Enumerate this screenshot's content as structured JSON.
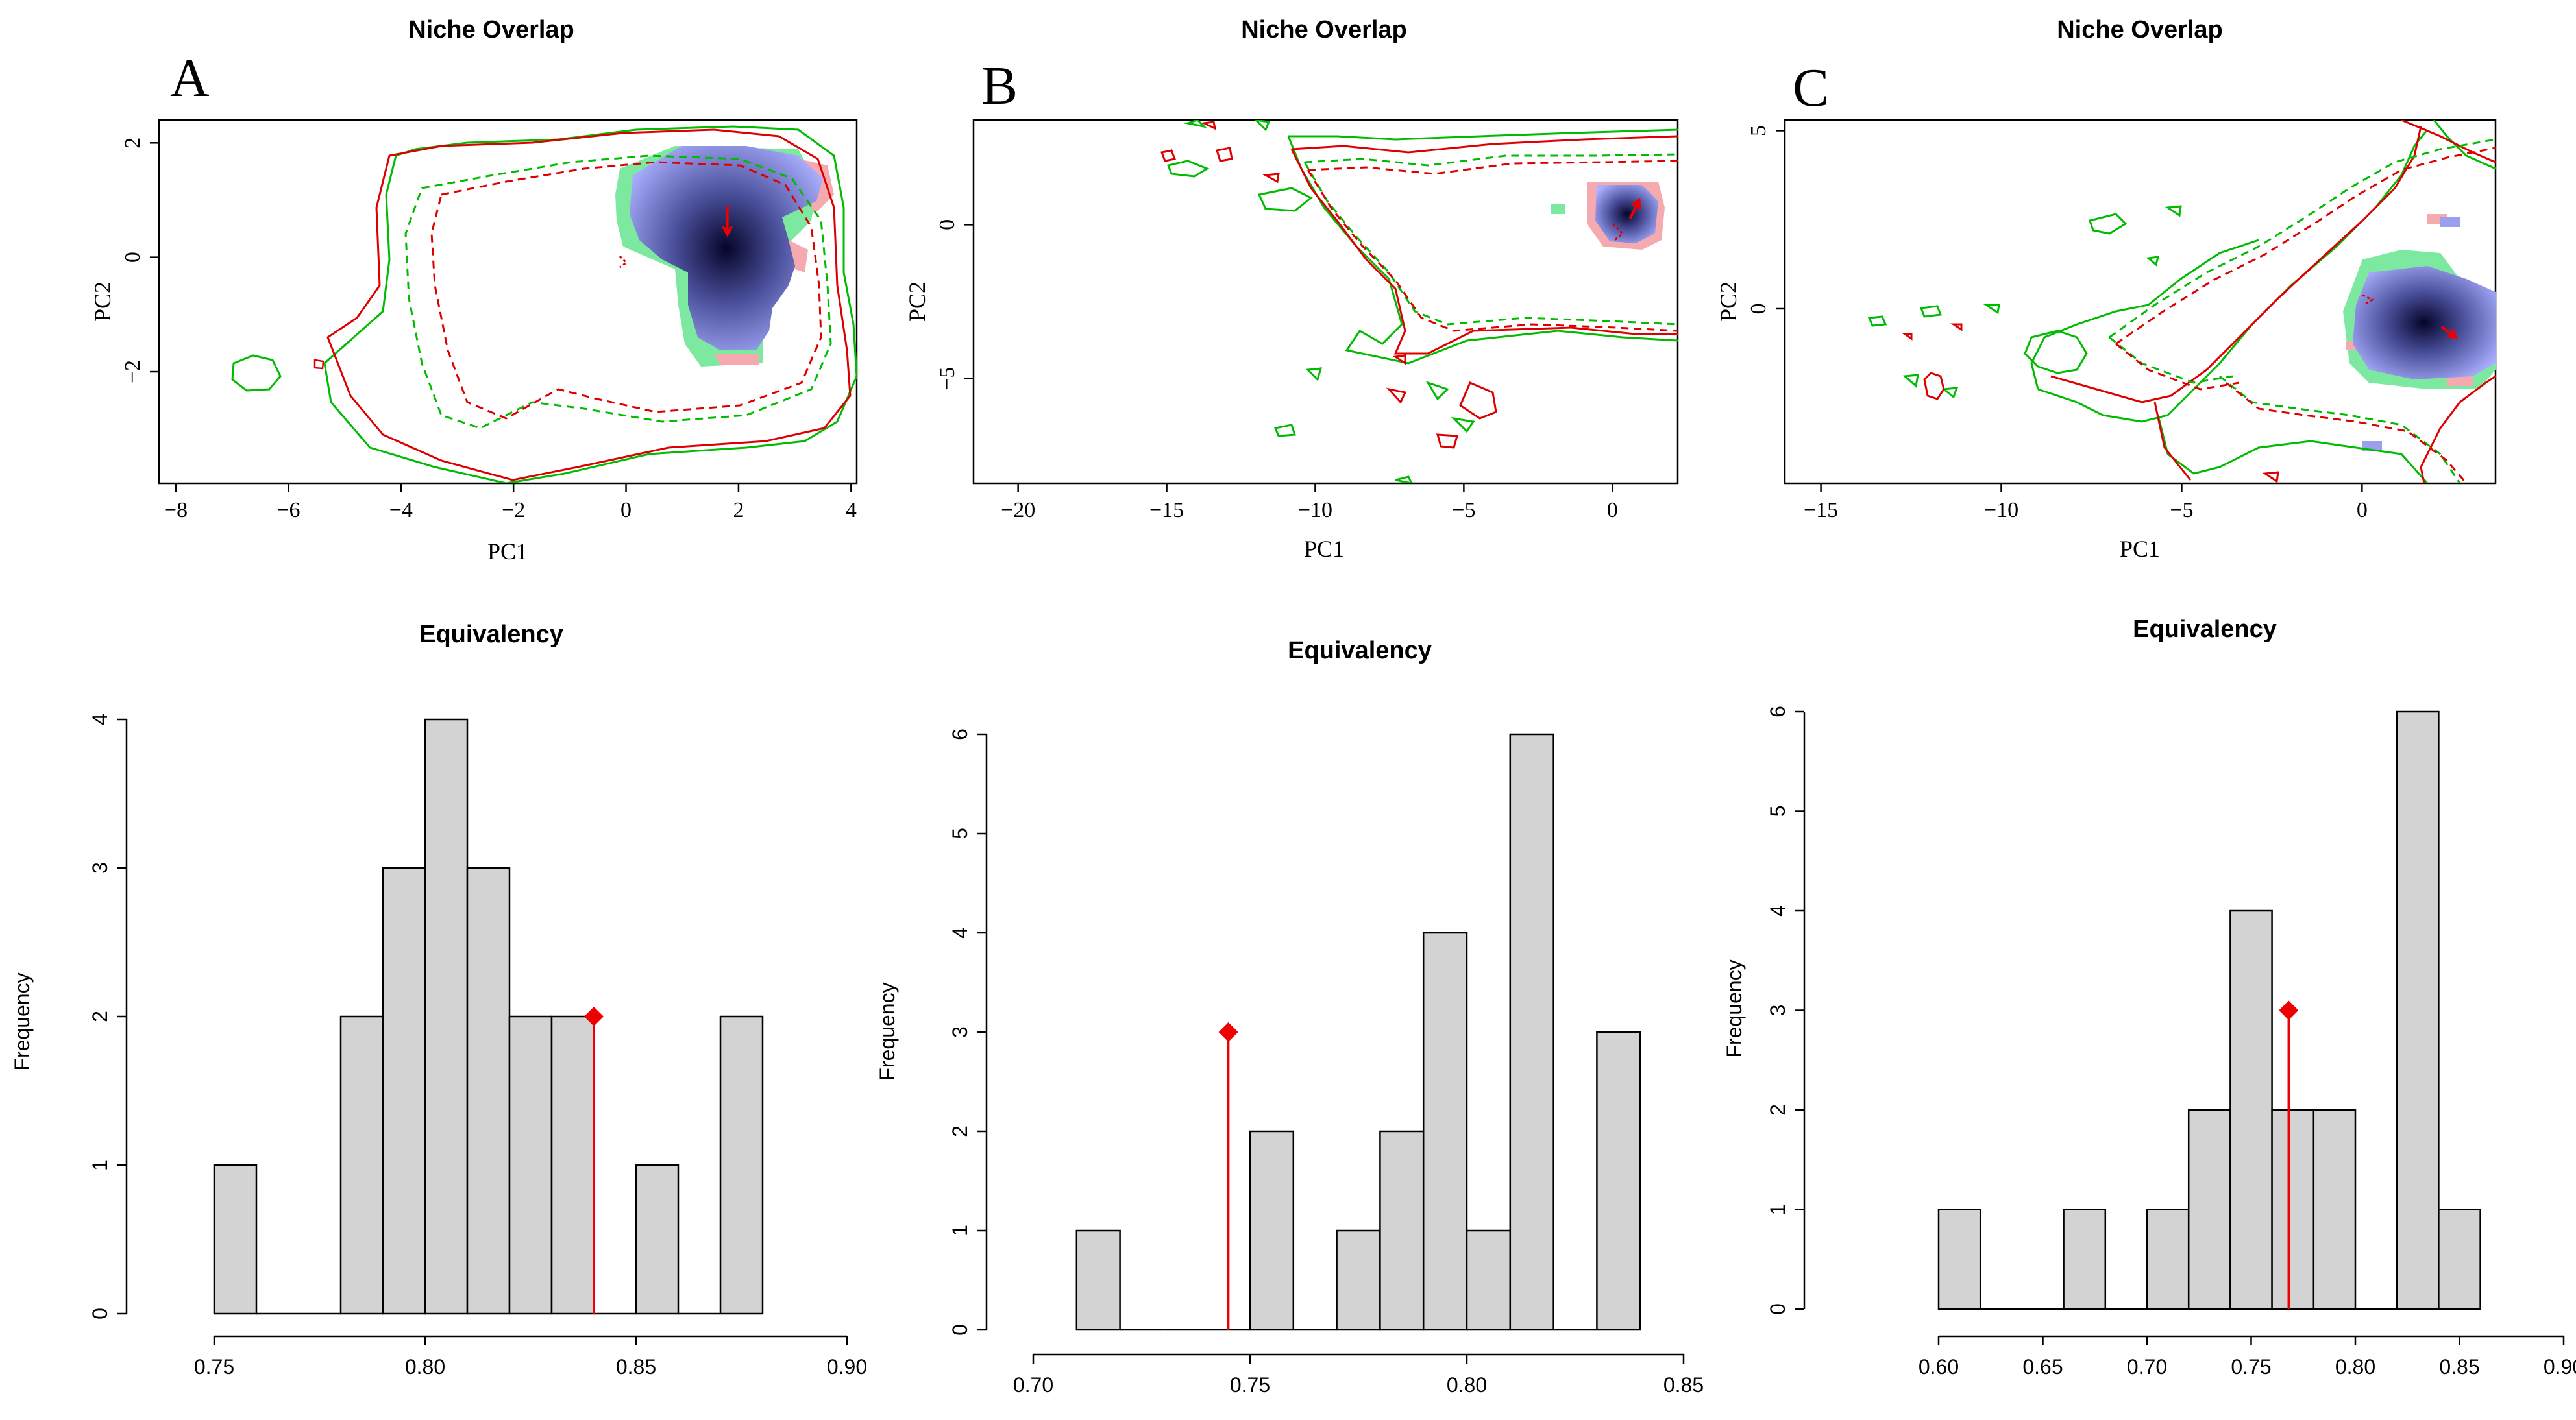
{
  "figure": {
    "panel_letters": [
      "A",
      "B",
      "C"
    ],
    "colors": {
      "species1_contour": "#00bb00",
      "species2_contour": "#dd0000",
      "overlap_dark": "#0a0a3a",
      "overlap_light": "#aab0ff",
      "species1_fill": "#7de8a0",
      "species2_fill": "#f5aab0",
      "bar_fill": "#d3d3d3",
      "observed_marker": "#ee0000"
    }
  },
  "chart_data": [
    {
      "id": "A_top",
      "type": "niche-overlap",
      "letter": "A",
      "title": "Niche Overlap",
      "xlabel": "PC1",
      "ylabel": "PC2",
      "xlim": [
        -8.3,
        4.1
      ],
      "ylim": [
        -3.95,
        2.4
      ],
      "xticks": [
        -8,
        -6,
        -4,
        -2,
        0,
        2,
        4
      ],
      "yticks": [
        -2,
        0,
        2
      ],
      "xtick_labels": [
        "−8",
        "−6",
        "−4",
        "−2",
        "0",
        "2",
        "4"
      ],
      "ytick_labels": [
        "−2",
        "0",
        "2"
      ],
      "centroid_arrow": {
        "from": [
          1.8,
          0.9
        ],
        "to": [
          1.8,
          0.4
        ]
      }
    },
    {
      "id": "B_top",
      "type": "niche-overlap",
      "letter": "B",
      "title": "Niche Overlap",
      "xlabel": "PC1",
      "ylabel": "PC2",
      "xlim": [
        -21.5,
        2.2
      ],
      "ylim": [
        -8.4,
        3.4
      ],
      "xticks": [
        -20,
        -15,
        -10,
        -5,
        0
      ],
      "yticks": [
        -5,
        0
      ],
      "xtick_labels": [
        "−20",
        "−15",
        "−10",
        "−5",
        "0"
      ],
      "ytick_labels": [
        "−5",
        "0"
      ],
      "centroid_arrow": {
        "from": [
          0.6,
          0.2
        ],
        "to": [
          0.9,
          0.8
        ]
      }
    },
    {
      "id": "C_top",
      "type": "niche-overlap",
      "letter": "C",
      "title": "Niche Overlap",
      "xlabel": "PC1",
      "ylabel": "PC2",
      "xlim": [
        -16,
        3.7
      ],
      "ylim": [
        -4.9,
        5.3
      ],
      "xticks": [
        -15,
        -10,
        -5,
        0
      ],
      "yticks": [
        0,
        5
      ],
      "xtick_labels": [
        "−15",
        "−10",
        "−5",
        "0"
      ],
      "ytick_labels": [
        "0",
        "5"
      ],
      "centroid_arrow": {
        "from": [
          2.2,
          -0.5
        ],
        "to": [
          2.6,
          -0.8
        ]
      }
    },
    {
      "id": "A_bottom",
      "type": "histogram",
      "title": "Equivalency",
      "xlabel": "",
      "ylabel": "Frequency",
      "xlim": [
        0.75,
        0.9
      ],
      "ylim": [
        0,
        4
      ],
      "xticks": [
        0.75,
        0.8,
        0.85,
        0.9
      ],
      "yticks": [
        0,
        1,
        2,
        3,
        4
      ],
      "xtick_labels": [
        "0.75",
        "0.80",
        "0.85",
        "0.90"
      ],
      "ytick_labels": [
        "0",
        "1",
        "2",
        "3",
        "4"
      ],
      "bin_edges": [
        0.75,
        0.76,
        0.77,
        0.78,
        0.79,
        0.8,
        0.81,
        0.82,
        0.83,
        0.84,
        0.85,
        0.86,
        0.87,
        0.88
      ],
      "counts": [
        1,
        0,
        0,
        2,
        3,
        4,
        3,
        2,
        2,
        0,
        1,
        0,
        2
      ],
      "observed": {
        "x": 0.84,
        "y": 2
      }
    },
    {
      "id": "B_bottom",
      "type": "histogram",
      "title": "Equivalency",
      "xlabel": "",
      "ylabel": "Frequency",
      "xlim": [
        0.7,
        0.85
      ],
      "ylim": [
        0,
        6
      ],
      "xticks": [
        0.7,
        0.75,
        0.8,
        0.85
      ],
      "yticks": [
        0,
        1,
        2,
        3,
        4,
        5,
        6
      ],
      "xtick_labels": [
        "0.70",
        "0.75",
        "0.80",
        "0.85"
      ],
      "ytick_labels": [
        "0",
        "1",
        "2",
        "3",
        "4",
        "5",
        "6"
      ],
      "bin_edges": [
        0.71,
        0.72,
        0.73,
        0.74,
        0.75,
        0.76,
        0.77,
        0.78,
        0.79,
        0.8,
        0.81,
        0.82,
        0.83,
        0.84
      ],
      "counts": [
        1,
        0,
        0,
        0,
        2,
        0,
        1,
        2,
        4,
        1,
        6,
        0,
        3
      ],
      "observed": {
        "x": 0.745,
        "y": 3
      }
    },
    {
      "id": "C_bottom",
      "type": "histogram",
      "title": "Equivalency",
      "xlabel": "",
      "ylabel": "Frequency",
      "xlim": [
        0.6,
        0.9
      ],
      "ylim": [
        0,
        6
      ],
      "xticks": [
        0.6,
        0.65,
        0.7,
        0.75,
        0.8,
        0.85,
        0.9
      ],
      "yticks": [
        0,
        1,
        2,
        3,
        4,
        5,
        6
      ],
      "xtick_labels": [
        "0.60",
        "0.65",
        "0.70",
        "0.75",
        "0.80",
        "0.85",
        "0.90"
      ],
      "ytick_labels": [
        "0",
        "1",
        "2",
        "3",
        "4",
        "5",
        "6"
      ],
      "bin_edges": [
        0.6,
        0.62,
        0.64,
        0.66,
        0.68,
        0.7,
        0.72,
        0.74,
        0.76,
        0.78,
        0.8,
        0.82,
        0.84,
        0.86
      ],
      "counts": [
        1,
        0,
        0,
        1,
        0,
        1,
        2,
        4,
        2,
        2,
        0,
        6,
        1
      ],
      "observed": {
        "x": 0.768,
        "y": 3
      }
    }
  ]
}
